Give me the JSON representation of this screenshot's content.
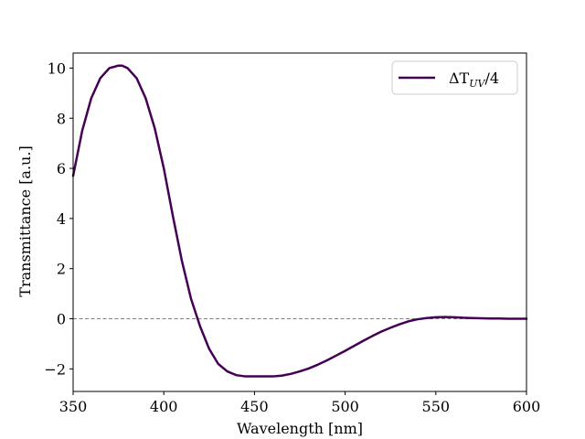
{
  "chart_data": {
    "type": "line",
    "title": "",
    "xlabel": "Wavelength [nm]",
    "ylabel": "Transmittance [a.u.]",
    "xlim": [
      350,
      600
    ],
    "ylim": [
      -2.9,
      10.6
    ],
    "x_ticks": [
      350,
      400,
      450,
      500,
      550,
      600
    ],
    "x_tick_labels": [
      "350",
      "400",
      "450",
      "500",
      "550",
      "600"
    ],
    "y_ticks": [
      -2,
      0,
      2,
      4,
      6,
      8,
      10
    ],
    "y_tick_labels": [
      "−2",
      "0",
      "2",
      "4",
      "6",
      "8",
      "10"
    ],
    "grid": false,
    "legend": {
      "position": "top-right",
      "text_main": "ΔT",
      "text_sub": "UV",
      "text_tail": "/4"
    },
    "reference_line": {
      "y": 0,
      "style": "dashed",
      "color": "#808080"
    },
    "series": [
      {
        "name": "ΔT_UV/4",
        "color": "#440154",
        "x": [
          350,
          355,
          360,
          365,
          370,
          375,
          377,
          380,
          385,
          390,
          395,
          400,
          405,
          410,
          415,
          420,
          425,
          430,
          435,
          440,
          445,
          450,
          455,
          460,
          465,
          470,
          475,
          480,
          485,
          490,
          495,
          500,
          505,
          510,
          515,
          520,
          525,
          530,
          535,
          540,
          545,
          550,
          555,
          560,
          565,
          570,
          575,
          580,
          585,
          590,
          595,
          600
        ],
        "y": [
          5.7,
          7.5,
          8.8,
          9.6,
          10.0,
          10.1,
          10.1,
          10.0,
          9.6,
          8.8,
          7.6,
          6.0,
          4.1,
          2.3,
          0.8,
          -0.3,
          -1.2,
          -1.8,
          -2.1,
          -2.25,
          -2.3,
          -2.3,
          -2.3,
          -2.3,
          -2.27,
          -2.2,
          -2.1,
          -1.98,
          -1.83,
          -1.66,
          -1.47,
          -1.28,
          -1.08,
          -0.88,
          -0.69,
          -0.51,
          -0.36,
          -0.22,
          -0.1,
          -0.02,
          0.03,
          0.06,
          0.07,
          0.06,
          0.04,
          0.03,
          0.02,
          0.01,
          0.01,
          0.0,
          0.0,
          0.0
        ]
      }
    ]
  }
}
